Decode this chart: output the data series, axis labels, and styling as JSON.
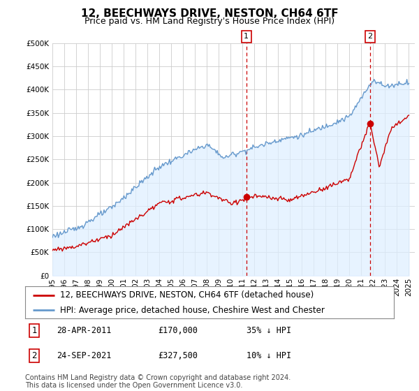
{
  "title": "12, BEECHWAYS DRIVE, NESTON, CH64 6TF",
  "subtitle": "Price paid vs. HM Land Registry's House Price Index (HPI)",
  "ytick_values": [
    0,
    50000,
    100000,
    150000,
    200000,
    250000,
    300000,
    350000,
    400000,
    450000,
    500000
  ],
  "ylim": [
    0,
    500000
  ],
  "xlim_start": 1995.0,
  "xlim_end": 2025.5,
  "sale1_date": 2011.32,
  "sale1_price": 170000,
  "sale2_date": 2021.73,
  "sale2_price": 327500,
  "vline_color": "#cc0000",
  "hpi_color": "#6699cc",
  "hpi_fill_color": "#ddeeff",
  "price_color": "#cc0000",
  "legend_label_price": "12, BEECHWAYS DRIVE, NESTON, CH64 6TF (detached house)",
  "legend_label_hpi": "HPI: Average price, detached house, Cheshire West and Chester",
  "footer": "Contains HM Land Registry data © Crown copyright and database right 2024.\nThis data is licensed under the Open Government Licence v3.0.",
  "background_color": "#ffffff",
  "grid_color": "#cccccc",
  "title_fontsize": 11,
  "subtitle_fontsize": 9,
  "tick_fontsize": 7.5,
  "legend_fontsize": 8.5,
  "footer_fontsize": 7
}
